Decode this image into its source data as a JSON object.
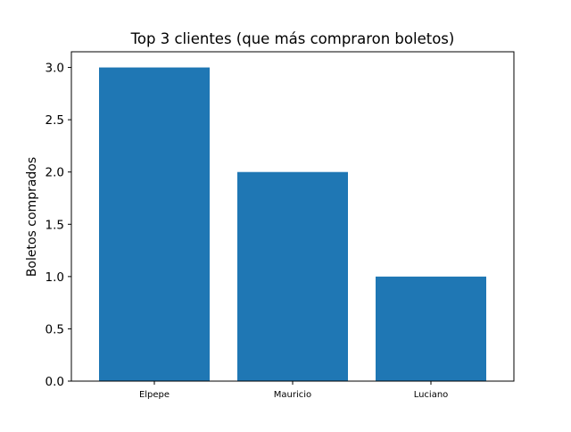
{
  "chart_data": {
    "type": "bar",
    "title": "Top 3 clientes (que más compraron boletos)",
    "xlabel": "",
    "ylabel": "Boletos comprados",
    "categories": [
      "Elpepe",
      "Mauricio",
      "Luciano"
    ],
    "values": [
      3,
      2,
      1
    ],
    "ylim": [
      0,
      3.15
    ],
    "yticks": [
      0.0,
      0.5,
      1.0,
      1.5,
      2.0,
      2.5,
      3.0
    ],
    "ytick_labels": [
      "0.0",
      "0.5",
      "1.0",
      "1.5",
      "2.0",
      "2.5",
      "3.0"
    ],
    "bar_color": "#1f77b4",
    "grid": false,
    "legend": "none"
  }
}
